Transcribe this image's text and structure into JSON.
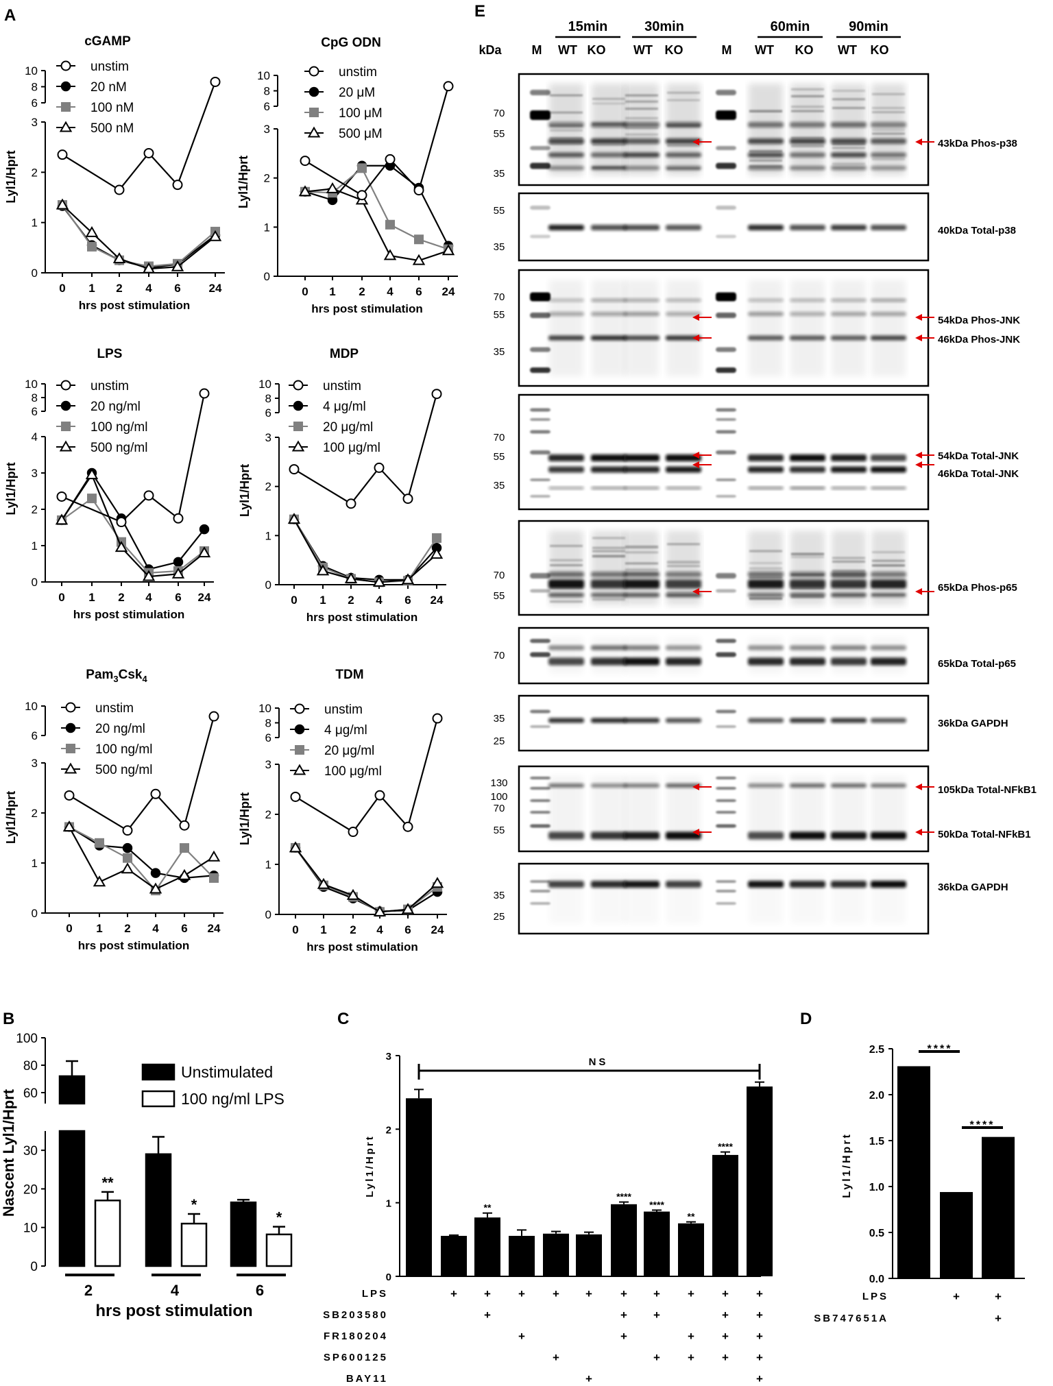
{
  "panel_letters": {
    "A": "A",
    "B": "B",
    "C": "C",
    "D": "D",
    "E": "E"
  },
  "chart_data": [
    {
      "id": "A1",
      "type": "line",
      "title": "cGAMP",
      "xlabel": "hrs post stimulation",
      "ylabel": "Lyl1/Hprt",
      "x": [
        "0",
        "1",
        "2",
        "4",
        "6",
        "24"
      ],
      "y_ticks_low": [
        "0",
        "1",
        "2",
        "3"
      ],
      "y_ticks_high": [
        "6",
        "8",
        "10"
      ],
      "series": [
        {
          "name": "unstim",
          "marker": "open-circle",
          "values": [
            2.35,
            null,
            1.65,
            2.38,
            1.75,
            8.6
          ]
        },
        {
          "name": "20 nM",
          "marker": "filled-circle",
          "values": [
            1.33,
            0.55,
            0.25,
            0.1,
            0.17,
            0.75
          ]
        },
        {
          "name": "100 nM",
          "marker": "gray-square",
          "values": [
            1.35,
            0.52,
            0.25,
            0.13,
            0.18,
            0.82
          ]
        },
        {
          "name": "500 nM",
          "marker": "open-triangle",
          "values": [
            1.35,
            0.8,
            0.28,
            0.08,
            0.12,
            0.72
          ]
        }
      ]
    },
    {
      "id": "A2",
      "type": "line",
      "title": "CpG ODN",
      "xlabel": "hrs post stimulation",
      "ylabel": "Lyl1/Hprt",
      "x": [
        "0",
        "1",
        "2",
        "4",
        "6",
        "24"
      ],
      "y_ticks_low": [
        "0",
        "1",
        "2",
        "3"
      ],
      "y_ticks_high": [
        "6",
        "8",
        "10"
      ],
      "series": [
        {
          "name": "unstim",
          "marker": "open-circle",
          "values": [
            2.35,
            null,
            1.65,
            2.38,
            1.75,
            8.6
          ]
        },
        {
          "name": "20 μM",
          "marker": "filled-circle",
          "values": [
            1.72,
            1.55,
            2.25,
            2.25,
            1.8,
            0.62
          ]
        },
        {
          "name": "100 μM",
          "marker": "gray-square",
          "values": [
            1.72,
            1.7,
            2.2,
            1.05,
            0.75,
            0.55
          ]
        },
        {
          "name": "500 μM",
          "marker": "open-triangle",
          "values": [
            1.72,
            1.78,
            1.55,
            0.42,
            0.32,
            0.52
          ]
        }
      ]
    },
    {
      "id": "A3",
      "type": "line",
      "title": "LPS",
      "xlabel": "hrs post stimulation",
      "ylabel": "Lyl1/Hprt",
      "x": [
        "0",
        "1",
        "2",
        "4",
        "6",
        "24"
      ],
      "y_ticks_low": [
        "0",
        "1",
        "2",
        "3",
        "4"
      ],
      "y_ticks_high": [
        "6",
        "8",
        "10"
      ],
      "series": [
        {
          "name": "unstim",
          "marker": "open-circle",
          "values": [
            2.35,
            null,
            1.65,
            2.38,
            1.75,
            8.6
          ]
        },
        {
          "name": "20 ng/ml",
          "marker": "filled-circle",
          "values": [
            1.7,
            3.0,
            1.75,
            0.35,
            0.55,
            1.45
          ]
        },
        {
          "name": "100 ng/ml",
          "marker": "gray-square",
          "values": [
            1.7,
            2.3,
            1.1,
            0.25,
            0.3,
            0.85
          ]
        },
        {
          "name": "500 ng/ml",
          "marker": "open-triangle",
          "values": [
            1.7,
            2.95,
            0.95,
            0.15,
            0.22,
            0.8
          ]
        }
      ]
    },
    {
      "id": "A4",
      "type": "line",
      "title": "MDP",
      "xlabel": "hrs post stimulation",
      "ylabel": "Lyl1/Hprt",
      "x": [
        "0",
        "1",
        "2",
        "4",
        "6",
        "24"
      ],
      "y_ticks_low": [
        "0",
        "1",
        "2",
        "3"
      ],
      "y_ticks_high": [
        "6",
        "8",
        "10"
      ],
      "series": [
        {
          "name": "unstim",
          "marker": "open-circle",
          "values": [
            2.35,
            null,
            1.65,
            2.38,
            1.75,
            8.6
          ]
        },
        {
          "name": "4 μg/ml",
          "marker": "filled-circle",
          "values": [
            1.33,
            0.38,
            0.14,
            0.1,
            0.1,
            0.75
          ]
        },
        {
          "name": "20 μg/ml",
          "marker": "gray-square",
          "values": [
            1.33,
            0.35,
            0.12,
            0.05,
            0.08,
            0.95
          ]
        },
        {
          "name": "100 μg/ml",
          "marker": "open-triangle",
          "values": [
            1.33,
            0.28,
            0.12,
            0.05,
            0.1,
            0.62
          ]
        }
      ]
    },
    {
      "id": "A5",
      "type": "line",
      "title": "Pam",
      "title_sub1": "3",
      "title_mid": "Csk",
      "title_sub2": "4",
      "xlabel": "hrs post stimulation",
      "ylabel": "Lyl1/Hprt",
      "x": [
        "0",
        "1",
        "2",
        "4",
        "6",
        "24"
      ],
      "y_ticks_low": [
        "0",
        "1",
        "2",
        "3"
      ],
      "y_ticks_high": [
        "6",
        "10"
      ],
      "series": [
        {
          "name": "unstim",
          "marker": "open-circle",
          "values": [
            2.35,
            null,
            1.65,
            2.38,
            1.75,
            8.6
          ]
        },
        {
          "name": "20 ng/ml",
          "marker": "filled-circle",
          "values": [
            1.72,
            1.35,
            1.3,
            0.8,
            0.7,
            0.75
          ]
        },
        {
          "name": "100 ng/ml",
          "marker": "gray-square",
          "values": [
            1.72,
            1.4,
            1.1,
            0.45,
            1.3,
            0.7
          ]
        },
        {
          "name": "500 ng/ml",
          "marker": "open-triangle",
          "values": [
            1.72,
            0.62,
            0.88,
            0.48,
            0.75,
            1.12
          ]
        }
      ]
    },
    {
      "id": "A6",
      "type": "line",
      "title": "TDM",
      "xlabel": "hrs post stimulation",
      "ylabel": "Lyl1/Hprt",
      "x": [
        "0",
        "1",
        "2",
        "4",
        "6",
        "24"
      ],
      "y_ticks_low": [
        "0",
        "1",
        "2",
        "3"
      ],
      "y_ticks_high": [
        "6",
        "8",
        "10"
      ],
      "series": [
        {
          "name": "unstim",
          "marker": "open-circle",
          "values": [
            2.35,
            null,
            1.65,
            2.38,
            1.75,
            8.6
          ]
        },
        {
          "name": "4 μg/ml",
          "marker": "filled-circle",
          "values": [
            1.33,
            0.55,
            0.32,
            0.06,
            0.08,
            0.45
          ]
        },
        {
          "name": "20 μg/ml",
          "marker": "gray-square",
          "values": [
            1.33,
            0.58,
            0.35,
            0.05,
            0.1,
            0.55
          ]
        },
        {
          "name": "100 μg/ml",
          "marker": "open-triangle",
          "values": [
            1.33,
            0.6,
            0.38,
            0.05,
            0.1,
            0.62
          ]
        }
      ]
    },
    {
      "id": "B",
      "type": "bar",
      "xlabel": "hrs post stimulation",
      "ylabel": "Nascent Lyl1/Hprt",
      "categories": [
        "2",
        "4",
        "6"
      ],
      "y_ticks_low": [
        "0",
        "10",
        "20",
        "30"
      ],
      "y_ticks_high": [
        "60",
        "80",
        "100"
      ],
      "series": [
        {
          "name": "Unstimulated",
          "color": "#000000",
          "values": [
            72,
            29,
            16.5
          ],
          "errors": [
            11,
            4.5,
            0.7
          ]
        },
        {
          "name": "100 ng/ml LPS",
          "color": "#ffffff",
          "values": [
            17,
            11,
            8.2
          ],
          "errors": [
            2.2,
            2.5,
            2
          ]
        }
      ],
      "significance": [
        [
          "",
          "**"
        ],
        [
          "",
          "*"
        ],
        [
          "",
          "*"
        ]
      ]
    },
    {
      "id": "C",
      "type": "bar",
      "ylabel": "Lyl1/Hprt",
      "ylim": [
        0,
        3
      ],
      "y_ticks": [
        "0",
        "1",
        "2",
        "3"
      ],
      "values": [
        2.42,
        0.55,
        0.8,
        0.55,
        0.58,
        0.57,
        0.98,
        0.88,
        0.72,
        1.65,
        2.58
      ],
      "errors": [
        0.12,
        0.01,
        0.06,
        0.08,
        0.03,
        0.03,
        0.03,
        0.02,
        0.02,
        0.04,
        0.06
      ],
      "significance": [
        "",
        "",
        "**",
        "",
        "",
        "",
        "****",
        "****",
        "**",
        "****",
        ""
      ],
      "ns_label": "NS",
      "treatments": [
        {
          "name": "LPS",
          "marks": [
            "",
            "+",
            "+",
            "+",
            "+",
            "+",
            "+",
            "+",
            "+",
            "+",
            "+"
          ]
        },
        {
          "name": "SB203580",
          "marks": [
            "",
            "",
            "+",
            "",
            "",
            "",
            "+",
            "+",
            "",
            "+",
            "+"
          ]
        },
        {
          "name": "FR180204",
          "marks": [
            "",
            "",
            "",
            "+",
            "",
            "",
            "+",
            "",
            "+",
            "+",
            "+"
          ]
        },
        {
          "name": "SP600125",
          "marks": [
            "",
            "",
            "",
            "",
            "+",
            "",
            "",
            "+",
            "+",
            "+",
            "+"
          ]
        },
        {
          "name": "BAY11",
          "marks": [
            "",
            "",
            "",
            "",
            "",
            "+",
            "",
            "",
            "",
            "",
            "+"
          ]
        }
      ]
    },
    {
      "id": "D",
      "type": "bar",
      "ylabel": "Lyl1/Hprt",
      "ylim": [
        0,
        2.5
      ],
      "y_ticks": [
        "0.0",
        "0.5",
        "1.0",
        "1.5",
        "2.0",
        "2.5"
      ],
      "values": [
        2.31,
        0.94,
        1.54
      ],
      "significance_label": "****",
      "treatments": [
        {
          "name": "LPS",
          "marks": [
            "",
            "+",
            "+"
          ]
        },
        {
          "name": "SB747651A",
          "marks": [
            "",
            "",
            "+"
          ]
        }
      ]
    }
  ],
  "blot": {
    "kda_label": "kDa",
    "marker_label": "M",
    "time_groups": [
      "15min",
      "30min",
      "60min",
      "90min"
    ],
    "genotypes": [
      "WT",
      "KO",
      "WT",
      "KO",
      "WT",
      "KO",
      "WT",
      "KO"
    ],
    "panels": [
      {
        "markers": [
          "70",
          "55",
          "35"
        ],
        "labels": [
          "43kDa Phos-p38"
        ]
      },
      {
        "markers": [
          "55",
          "35"
        ],
        "labels": [
          "40kDa Total-p38"
        ]
      },
      {
        "markers": [
          "70",
          "55",
          "35"
        ],
        "labels": [
          "54kDa Phos-JNK",
          "46kDa Phos-JNK"
        ]
      },
      {
        "markers": [
          "70",
          "55",
          "35"
        ],
        "labels": [
          "54kDa Total-JNK",
          "46kDa Total-JNK"
        ]
      },
      {
        "markers": [
          "70",
          "55"
        ],
        "labels": [
          "65kDa Phos-p65"
        ]
      },
      {
        "markers": [
          "70"
        ],
        "labels": [
          "65kDa Total-p65"
        ]
      },
      {
        "markers": [
          "35",
          "25"
        ],
        "labels": [
          "36kDa GAPDH"
        ]
      },
      {
        "markers": [
          "130",
          "100",
          "70",
          "55"
        ],
        "labels": [
          "105kDa Total-NFkB1",
          "50kDa Total-NFkB1"
        ]
      },
      {
        "markers": [
          "35",
          "25"
        ],
        "labels": [
          "36kDa GAPDH"
        ]
      }
    ]
  }
}
